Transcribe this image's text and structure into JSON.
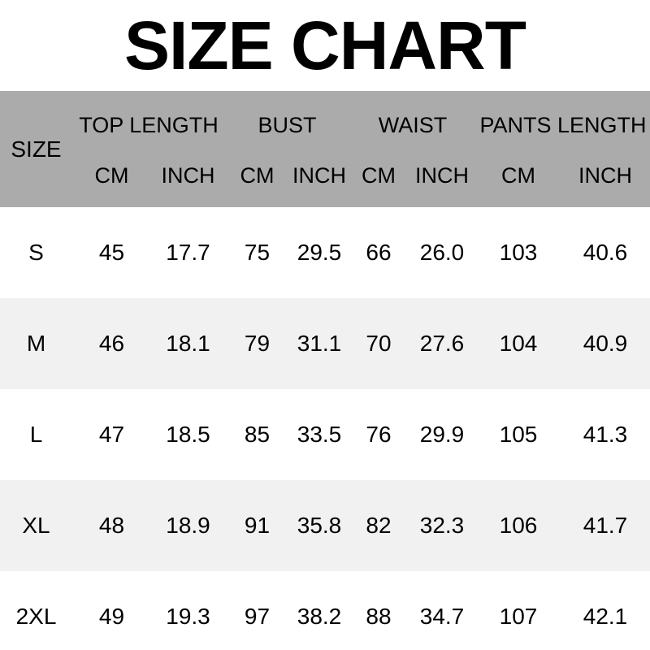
{
  "title": "SIZE CHART",
  "colors": {
    "header_background": "#ababab",
    "alt_row_background": "#f1f1f1",
    "row_background": "#ffffff",
    "text": "#000000"
  },
  "table": {
    "size_header": "SIZE",
    "groups": [
      {
        "label": "TOP LENGTH"
      },
      {
        "label": "BUST"
      },
      {
        "label": "WAIST"
      },
      {
        "label": "PANTS LENGTH"
      }
    ],
    "units": [
      "CM",
      "INCH",
      "CM",
      "INCH",
      "CM",
      "INCH",
      "CM",
      "INCH"
    ],
    "rows": [
      {
        "size": "S",
        "cells": [
          "45",
          "17.7",
          "75",
          "29.5",
          "66",
          "26.0",
          "103",
          "40.6"
        ]
      },
      {
        "size": "M",
        "cells": [
          "46",
          "18.1",
          "79",
          "31.1",
          "70",
          "27.6",
          "104",
          "40.9"
        ]
      },
      {
        "size": "L",
        "cells": [
          "47",
          "18.5",
          "85",
          "33.5",
          "76",
          "29.9",
          "105",
          "41.3"
        ]
      },
      {
        "size": "XL",
        "cells": [
          "48",
          "18.9",
          "91",
          "35.8",
          "82",
          "32.3",
          "106",
          "41.7"
        ]
      },
      {
        "size": "2XL",
        "cells": [
          "49",
          "19.3",
          "97",
          "38.2",
          "88",
          "34.7",
          "107",
          "42.1"
        ]
      }
    ]
  },
  "chart_data": {
    "type": "table",
    "title": "SIZE CHART",
    "columns": [
      "SIZE",
      "TOP LENGTH CM",
      "TOP LENGTH INCH",
      "BUST CM",
      "BUST INCH",
      "WAIST CM",
      "WAIST INCH",
      "PANTS LENGTH CM",
      "PANTS LENGTH INCH"
    ],
    "rows": [
      [
        "S",
        45,
        17.7,
        75,
        29.5,
        66,
        26.0,
        103,
        40.6
      ],
      [
        "M",
        46,
        18.1,
        79,
        31.1,
        70,
        27.6,
        104,
        40.9
      ],
      [
        "L",
        47,
        18.5,
        85,
        33.5,
        76,
        29.9,
        105,
        41.3
      ],
      [
        "XL",
        48,
        18.9,
        91,
        35.8,
        82,
        32.3,
        106,
        41.7
      ],
      [
        "2XL",
        49,
        19.3,
        97,
        38.2,
        88,
        34.7,
        107,
        42.1
      ]
    ]
  }
}
